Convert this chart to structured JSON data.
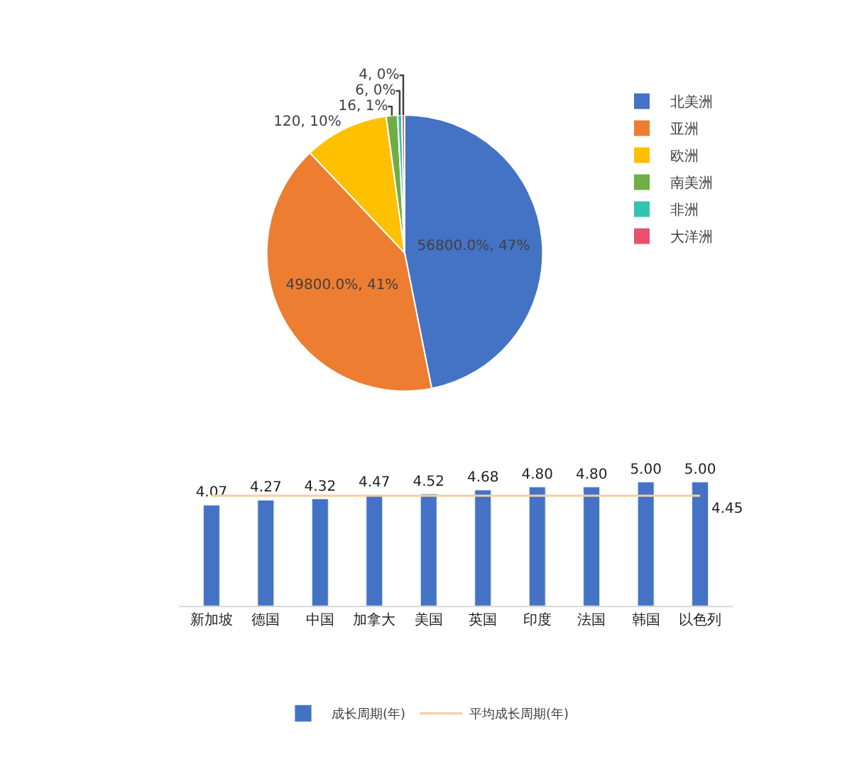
{
  "chart_data": [
    {
      "type": "pie",
      "categories": [
        "北美洲",
        "亚洲",
        "欧洲",
        "南美洲",
        "非洲",
        "大洋洲"
      ],
      "values": [
        568,
        498,
        120,
        16,
        6,
        4
      ],
      "colors": [
        "#4472c4",
        "#ed7d31",
        "#ffc000",
        "#70ad47",
        "#33c4b0",
        "#e8506e"
      ],
      "value_labels": [
        "56800.0%, 47%",
        "49800.0%, 41%",
        "120, 10%",
        "16, 1%",
        "6, 0%",
        "4, 0%"
      ],
      "legend": "right"
    },
    {
      "type": "bar",
      "categories": [
        "新加坡",
        "德国",
        "中国",
        "加拿大",
        "美国",
        "英国",
        "印度",
        "法国",
        "韩国",
        "以色列"
      ],
      "series": [
        {
          "name": "成长周期(年)",
          "type": "bar",
          "color": "#4472c4",
          "values": [
            4.07,
            4.27,
            4.32,
            4.47,
            4.52,
            4.68,
            4.8,
            4.8,
            5.0,
            5.0
          ],
          "value_labels": [
            "4.07",
            "4.27",
            "4.32",
            "4.47",
            "4.52",
            "4.68",
            "4.80",
            "4.80",
            "5.00",
            "5.00"
          ]
        },
        {
          "name": "平均成长周期(年)",
          "type": "line",
          "color": "#f5cfa0",
          "values": [
            4.45,
            4.45,
            4.45,
            4.45,
            4.45,
            4.45,
            4.45,
            4.45,
            4.45,
            4.45
          ],
          "value_labels": [
            null,
            null,
            null,
            null,
            null,
            null,
            null,
            null,
            null,
            "4.45"
          ]
        }
      ],
      "tick_labels": "x",
      "legend": "bottom",
      "marker": "none"
    }
  ]
}
